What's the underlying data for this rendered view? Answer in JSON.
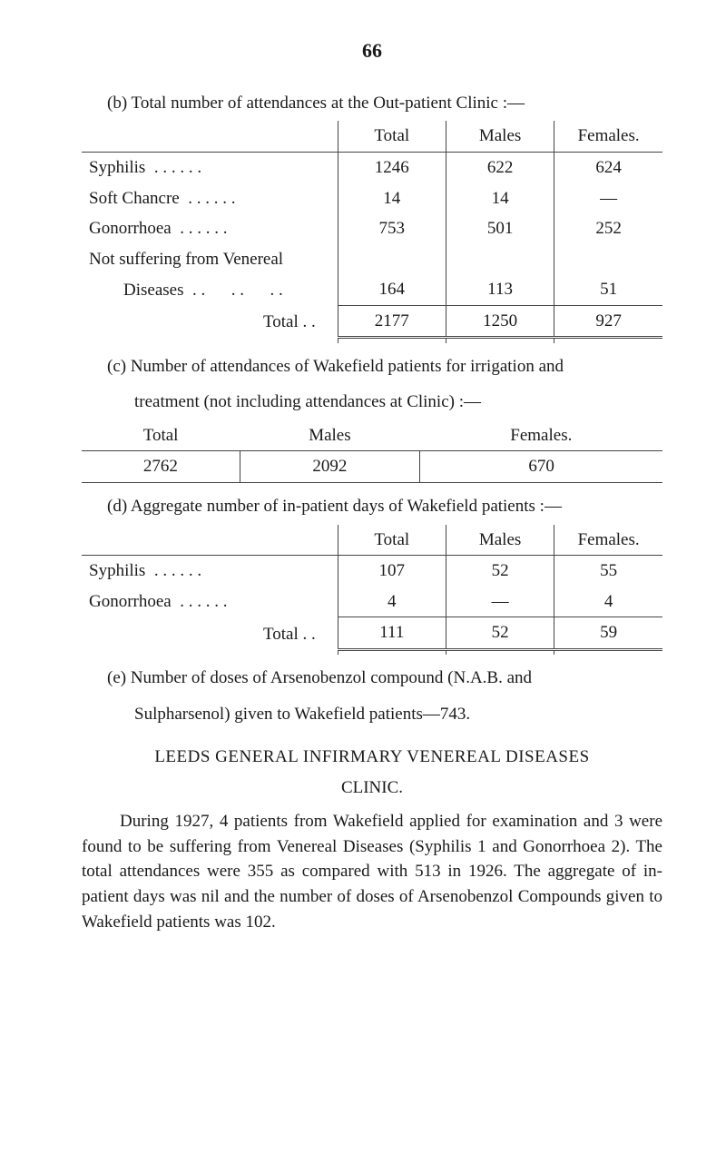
{
  "page_number": "66",
  "section_b": {
    "intro": "(b) Total number of attendances at the Out-patient Clinic :—",
    "columns": [
      "Total",
      "Males",
      "Females."
    ],
    "rows": [
      {
        "label": "Syphilis",
        "dots": ". .      . .      . .",
        "total": "1246",
        "males": "622",
        "females": "624"
      },
      {
        "label": "Soft Chancre",
        "dots": ". .      . .      . .",
        "total": "14",
        "males": "14",
        "females": "—"
      },
      {
        "label": "Gonorrhoea",
        "dots": ". .      . .      . .",
        "total": "753",
        "males": "501",
        "females": "252"
      },
      {
        "label": "Not suffering from Venereal",
        "dots": "",
        "total": "",
        "males": "",
        "females": ""
      },
      {
        "label": "        Diseases",
        "dots": ". .      . .      . .",
        "total": "164",
        "males": "113",
        "females": "51"
      }
    ],
    "total_label": "Total      . .",
    "total_row": {
      "total": "2177",
      "males": "1250",
      "females": "927"
    }
  },
  "section_c": {
    "intro1": "(c) Number of attendances of Wakefield patients for irrigation and",
    "intro2": "treatment (not including attendances at Clinic) :—",
    "columns": [
      "Total",
      "Males",
      "Females."
    ],
    "row": {
      "total": "2762",
      "males": "2092",
      "females": "670"
    }
  },
  "section_d": {
    "intro": "(d) Aggregate number of in-patient days of Wakefield patients :—",
    "columns": [
      "Total",
      "Males",
      "Females."
    ],
    "rows": [
      {
        "label": "Syphilis",
        "dots": ". .      . .      . .",
        "total": "107",
        "males": "52",
        "females": "55"
      },
      {
        "label": "Gonorrhoea",
        "dots": ". .      . .      . .",
        "total": "4",
        "males": "—",
        "females": "4"
      }
    ],
    "total_label": "Total      . .",
    "total_row": {
      "total": "111",
      "males": "52",
      "females": "59"
    }
  },
  "section_e": {
    "line1": "(e) Number of doses of Arsenobenzol compound (N.A.B. and",
    "line2": "Sulpharsenol) given to Wakefield patients—743."
  },
  "leeds": {
    "heading": "LEEDS GENERAL INFIRMARY VENEREAL DISEASES",
    "subheading": "CLINIC.",
    "para": "During 1927, 4 patients from Wakefield applied for examin­ation and 3 were found to be suffering from Venereal Diseases (Syphilis 1 and Gonorrhoea 2). The total attendances were 355 as compared with 513 in 1926. The aggregate of in-patient days was nil and the number of doses of Arsenobenzol Compounds given to Wakefield patients was 102."
  },
  "colors": {
    "text": "#1a1a1a",
    "rule": "#444444",
    "background": "#ffffff"
  }
}
